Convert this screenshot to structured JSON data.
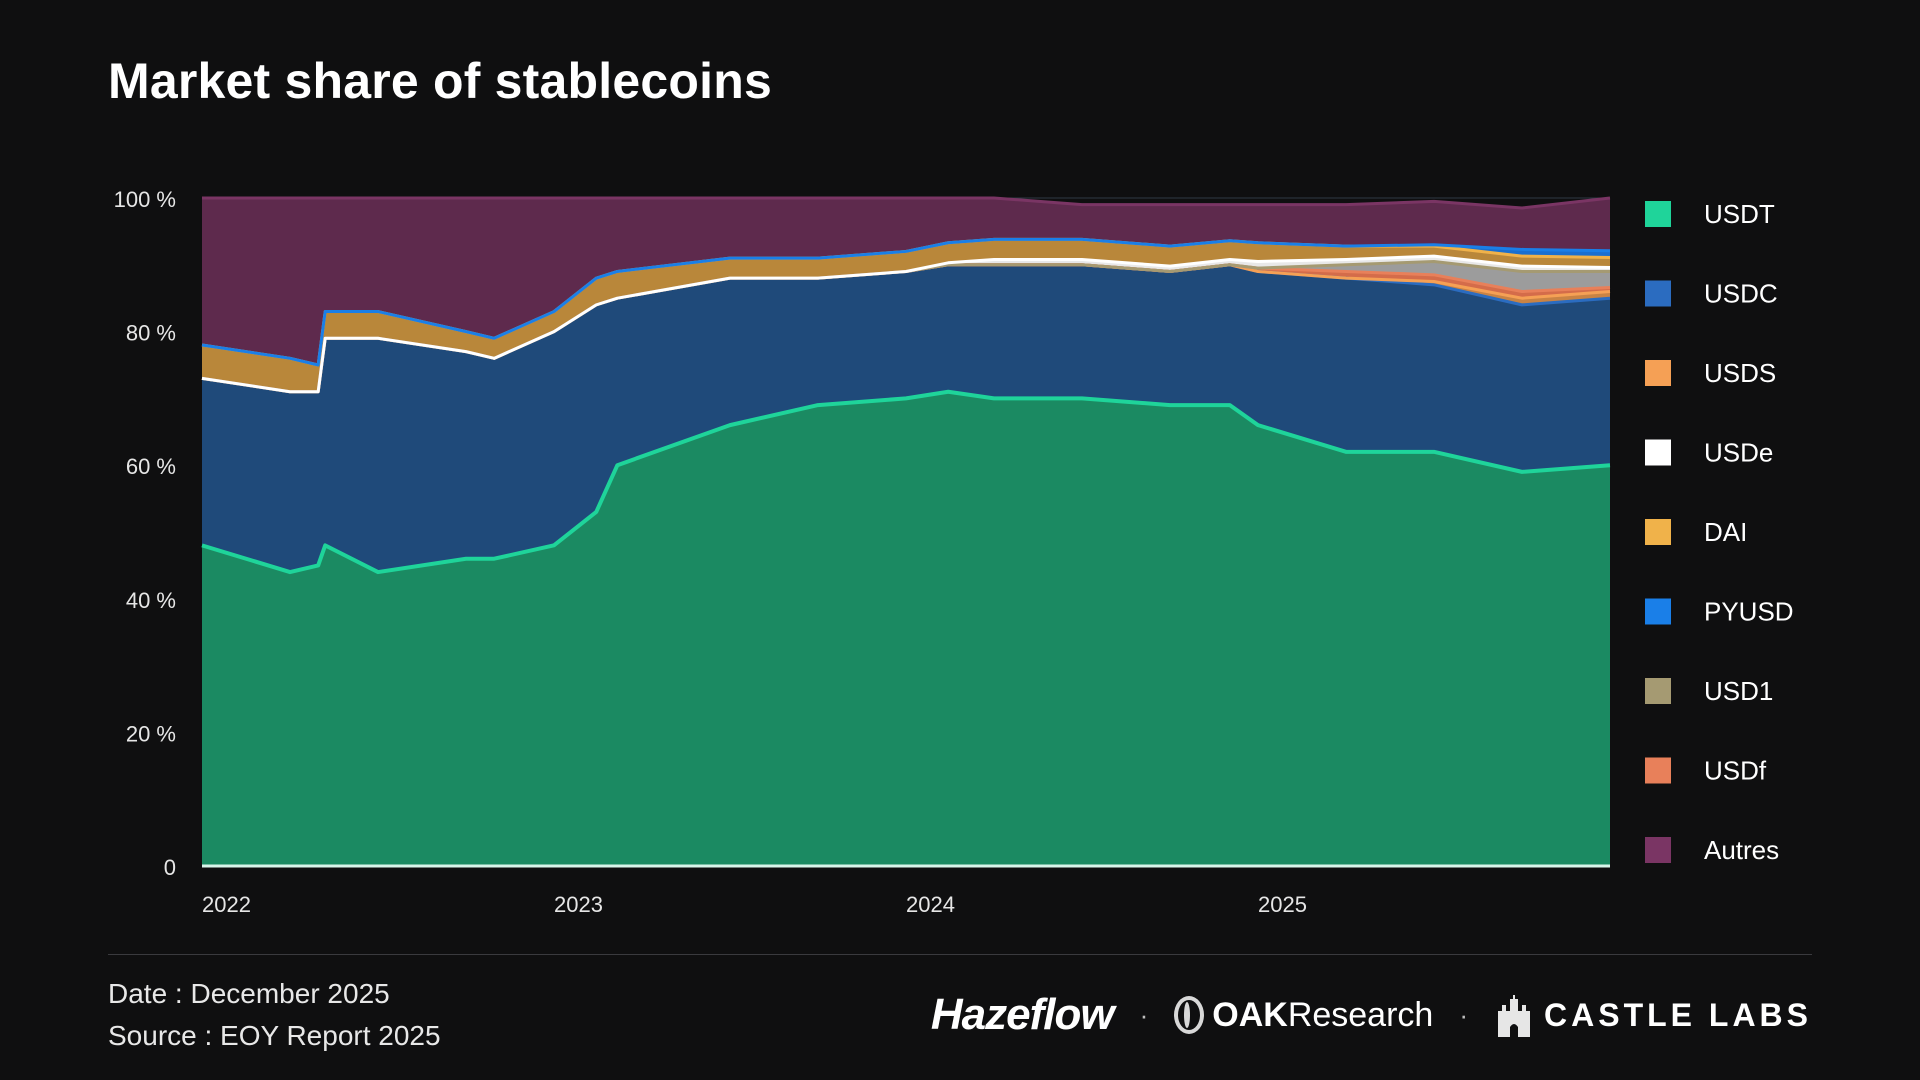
{
  "header": {
    "title": "Market share of stablecoins"
  },
  "footer": {
    "date_line": "Date : December 2025",
    "source_line": "Source : EOY Report 2025",
    "logos": {
      "hazeflow": "Hazeflow",
      "separator": "·",
      "oak_bold": "OAK",
      "oak_rest": "Research",
      "castle": "CASTLE LABS"
    }
  },
  "colors": {
    "background": "#0f0f10",
    "grid": "#2f3a45",
    "axis_text": "#e6e6e6"
  },
  "chart_data": {
    "type": "area",
    "stacked": true,
    "title": "Market share of stablecoins",
    "xlabel": "",
    "ylabel": "",
    "x_ticks": [
      "2022",
      "2023",
      "2024",
      "2025"
    ],
    "y_ticks": [
      "0",
      "20 %",
      "40 %",
      "60 %",
      "80 %",
      "100 %"
    ],
    "ylim": [
      0,
      100
    ],
    "grid": true,
    "legend_position": "right",
    "x": [
      2022.0,
      2022.25,
      2022.33,
      2022.35,
      2022.5,
      2022.75,
      2022.83,
      2023.0,
      2023.12,
      2023.18,
      2023.5,
      2023.75,
      2024.0,
      2024.12,
      2024.25,
      2024.5,
      2024.75,
      2024.92,
      2025.0,
      2025.25,
      2025.5,
      2025.75,
      2026.0
    ],
    "series": [
      {
        "name": "USDT",
        "color": "#1fd49a",
        "fill": "#1b8a62",
        "values": [
          48,
          44,
          45,
          48,
          44,
          46,
          46,
          48,
          53,
          60,
          66,
          69,
          70,
          71,
          70,
          70,
          69,
          69,
          66,
          62,
          62,
          59,
          60
        ]
      },
      {
        "name": "USDC",
        "color": "#2b6cc0",
        "fill": "#1f4a7a",
        "values": [
          25,
          27,
          26,
          31,
          35,
          31,
          30,
          32,
          31,
          25,
          22,
          19,
          19,
          19,
          20,
          20,
          20,
          21,
          23,
          26,
          25,
          25,
          25
        ]
      },
      {
        "name": "USDS",
        "color": "#f5a055",
        "fill": "#c98344",
        "values": [
          0,
          0,
          0,
          0,
          0,
          0,
          0,
          0,
          0,
          0,
          0,
          0,
          0,
          0,
          0,
          0,
          0,
          0,
          0,
          0,
          0.5,
          1,
          1
        ]
      },
      {
        "name": "USDf",
        "color": "#e8805a",
        "fill": "#d46c4a",
        "values": [
          0,
          0,
          0,
          0,
          0,
          0,
          0,
          0,
          0,
          0,
          0,
          0,
          0,
          0,
          0,
          0,
          0,
          0,
          0.5,
          1,
          1,
          1,
          0.6
        ]
      },
      {
        "name": "USD1",
        "color": "#a59a72",
        "fill": "#9c9c9c",
        "values": [
          0,
          0,
          0,
          0,
          0,
          0,
          0,
          0,
          0,
          0,
          0,
          0,
          0,
          0,
          0,
          0,
          0,
          0,
          0,
          1,
          2,
          3,
          2.4
        ]
      },
      {
        "name": "USDe",
        "color": "#ffffff",
        "fill": "#e8e8e8",
        "values": [
          0,
          0,
          0,
          0,
          0,
          0,
          0,
          0,
          0,
          0,
          0,
          0,
          0,
          0.3,
          0.8,
          0.8,
          0.8,
          0.8,
          1,
          0.8,
          0.8,
          0.8,
          0.6
        ]
      },
      {
        "name": "DAI",
        "color": "#f0b24a",
        "fill": "#b9873a",
        "values": [
          5,
          5,
          4,
          4,
          4,
          3,
          3,
          3,
          4,
          4,
          3,
          3,
          3,
          3,
          3,
          3,
          3,
          2.8,
          2.8,
          2,
          1.5,
          1.5,
          1.5
        ]
      },
      {
        "name": "PYUSD",
        "color": "#1a7fe8",
        "fill": "#1a6fd0",
        "values": [
          0,
          0,
          0,
          0,
          0,
          0,
          0,
          0,
          0,
          0,
          0,
          0,
          0,
          0,
          0,
          0,
          0,
          0,
          0,
          0,
          0.2,
          1,
          1
        ]
      },
      {
        "name": "Autres",
        "color": "#7a3564",
        "fill": "#5e2a4d",
        "values": [
          22,
          24,
          25,
          17,
          17,
          20,
          21,
          17,
          12,
          11,
          9,
          9,
          8,
          6.7,
          6.2,
          5.2,
          6.2,
          5.4,
          5.7,
          6.2,
          6.5,
          6.2,
          7.9
        ]
      }
    ],
    "legend_order": [
      "USDT",
      "USDC",
      "USDS",
      "USDe",
      "DAI",
      "PYUSD",
      "USD1",
      "USDf",
      "Autres"
    ]
  }
}
